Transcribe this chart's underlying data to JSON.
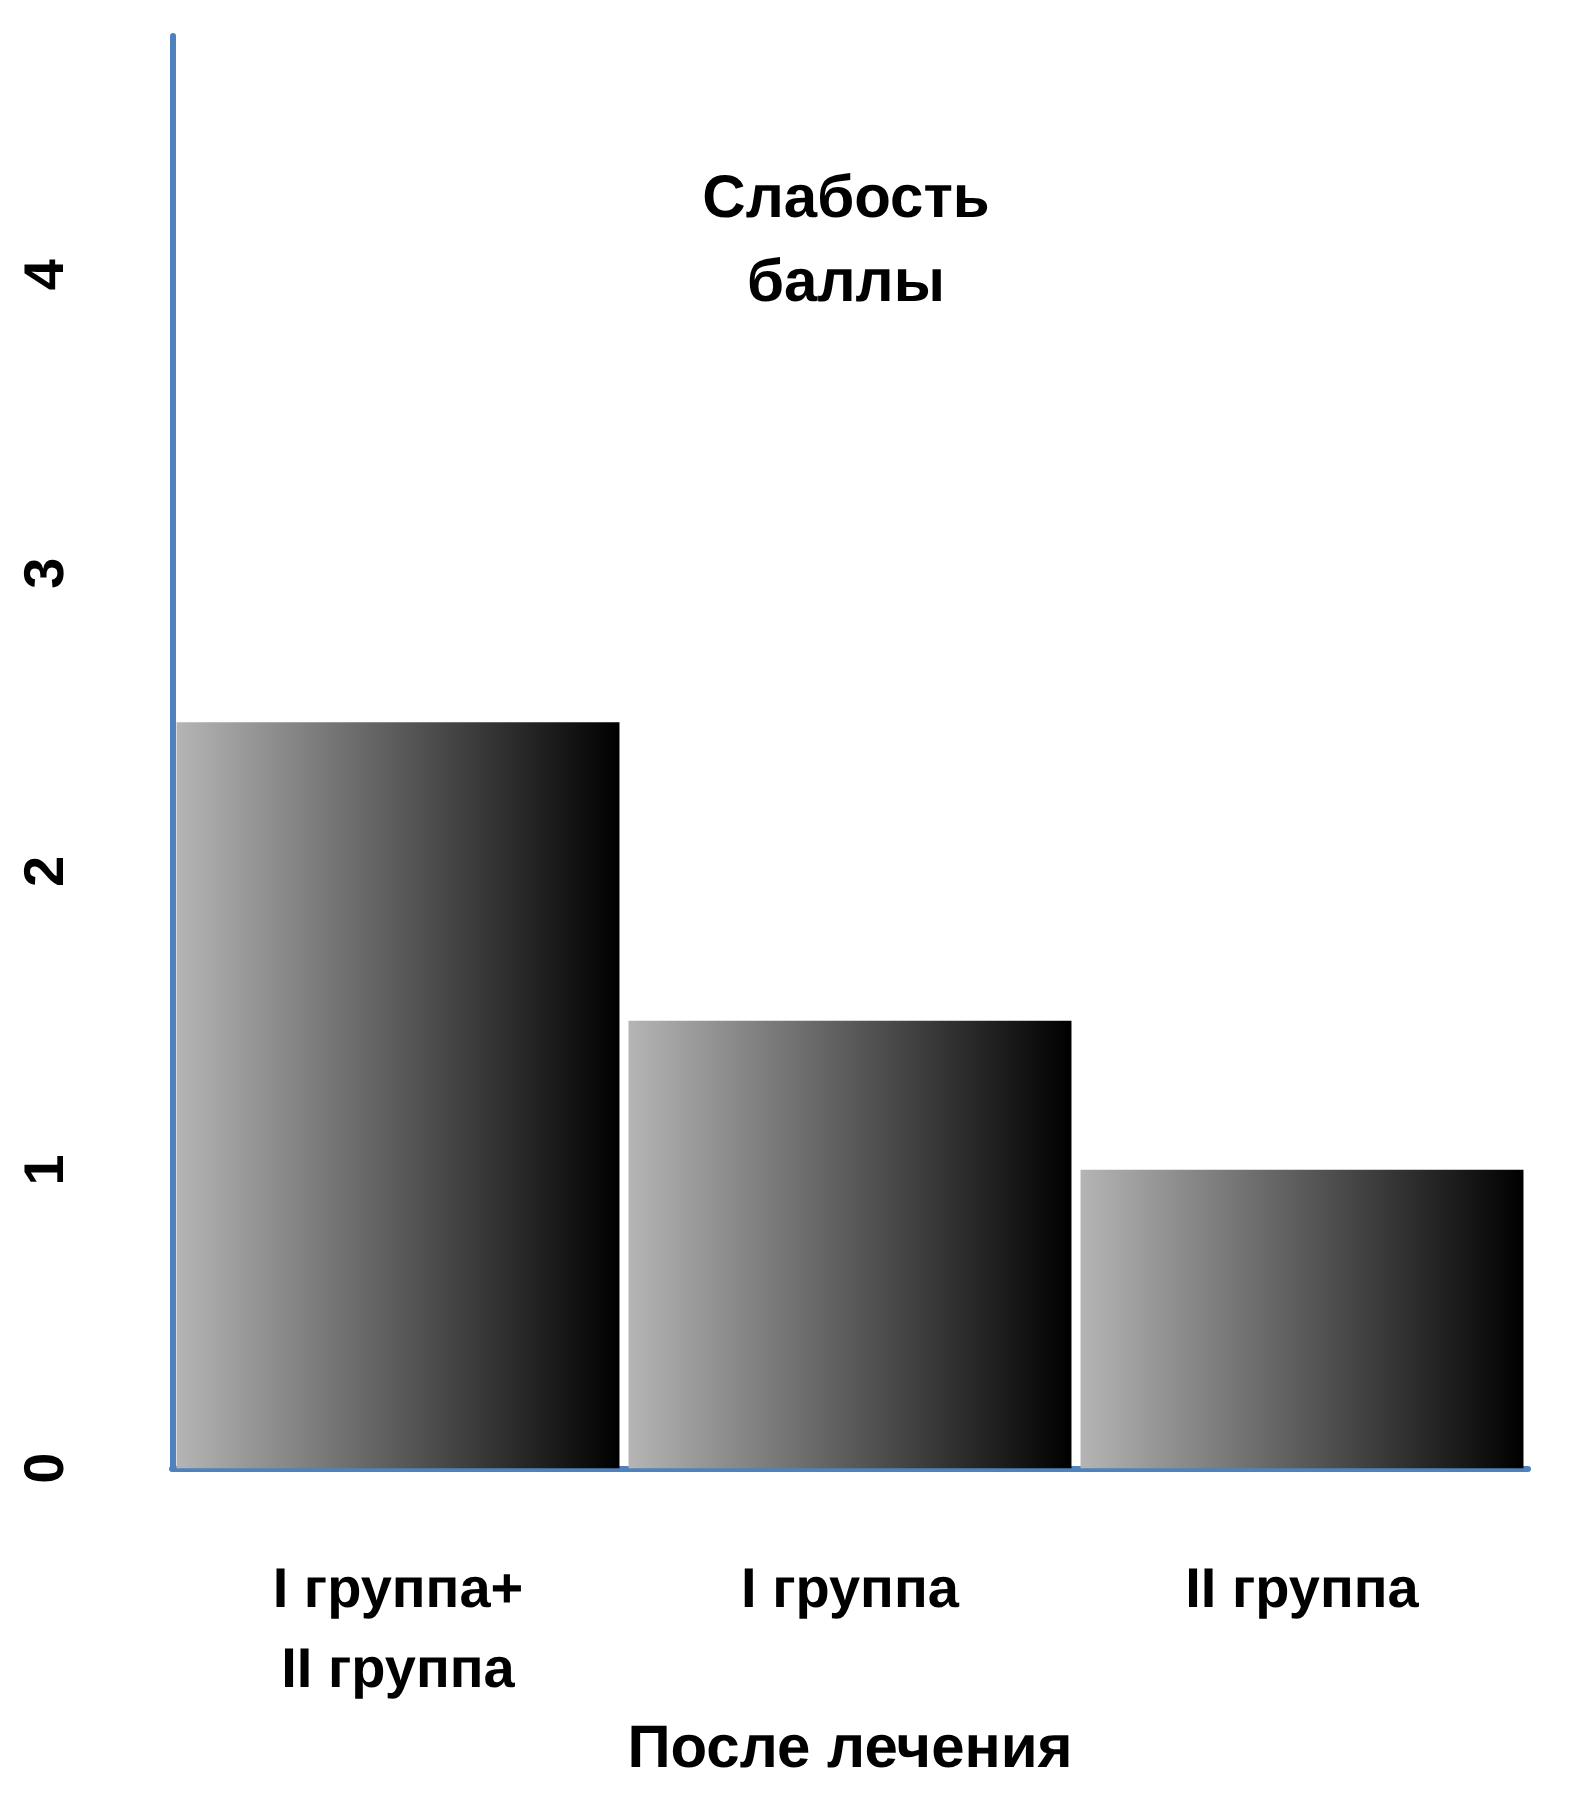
{
  "chart_data": {
    "type": "bar",
    "title": "Слабость\nбаллы",
    "xlabel": "После лечения",
    "categories": [
      "I группа+\nII группа",
      "I группа",
      "II группа"
    ],
    "values": [
      2.5,
      1.5,
      1.0
    ],
    "color": "#5a5a5a",
    "ylim": [
      0,
      4.8
    ],
    "yticks": [
      0,
      1,
      2,
      3,
      4
    ],
    "grid": false
  }
}
